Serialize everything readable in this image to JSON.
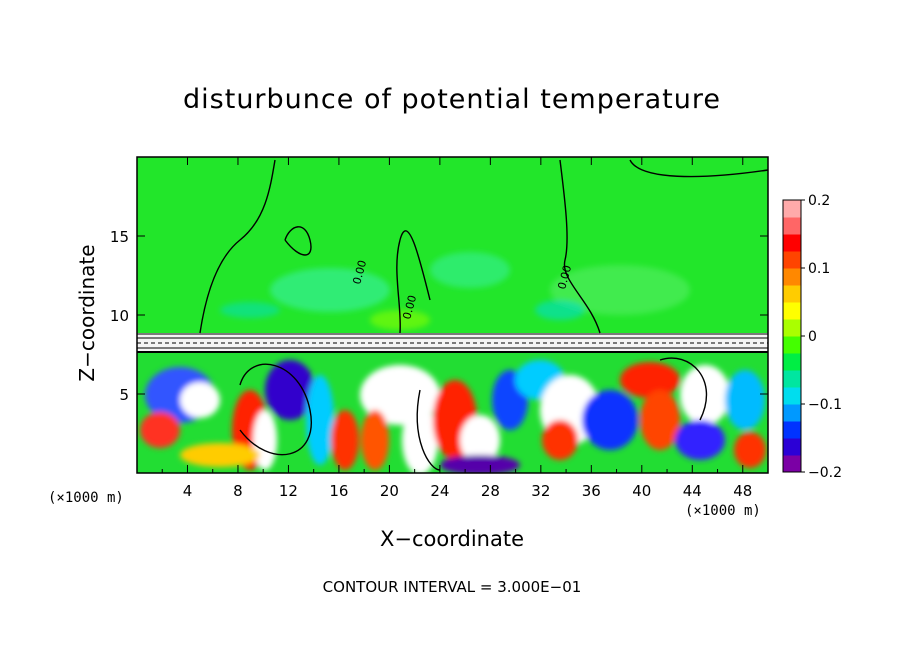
{
  "chart_data": {
    "type": "heatmap",
    "title": "disturbunce of potential temperature",
    "xlabel": "X−coordinate",
    "ylabel": "Z−coordinate",
    "x_unit_label": "(×1000 m)",
    "y_unit_label": "(×1000 m)",
    "contour_interval": "CONTOUR INTERVAL = 3.000E−01",
    "xlim": [
      0,
      50
    ],
    "ylim": [
      0,
      20
    ],
    "x_ticks": [
      "4",
      "8",
      "12",
      "16",
      "20",
      "24",
      "28",
      "32",
      "36",
      "40",
      "44",
      "48"
    ],
    "y_ticks": [
      "5",
      "10",
      "15"
    ],
    "colorbar": {
      "range": [
        -0.2,
        0.2
      ],
      "tick_labels": [
        "0.2",
        "0.1",
        "0",
        "−0.1",
        "−0.2"
      ],
      "colors": [
        "#7b00a5",
        "#2b00d6",
        "#0033ff",
        "#0099ff",
        "#00ddee",
        "#00e6a0",
        "#00ee44",
        "#44ff00",
        "#aaff00",
        "#ffff00",
        "#ffcc00",
        "#ff8800",
        "#ff4400",
        "#ff0000",
        "#ff6666",
        "#ffaaaa"
      ]
    },
    "contour_labels": [
      "0.00",
      "0.00",
      "0.00"
    ],
    "dominant_value_above_9km": 0
  }
}
